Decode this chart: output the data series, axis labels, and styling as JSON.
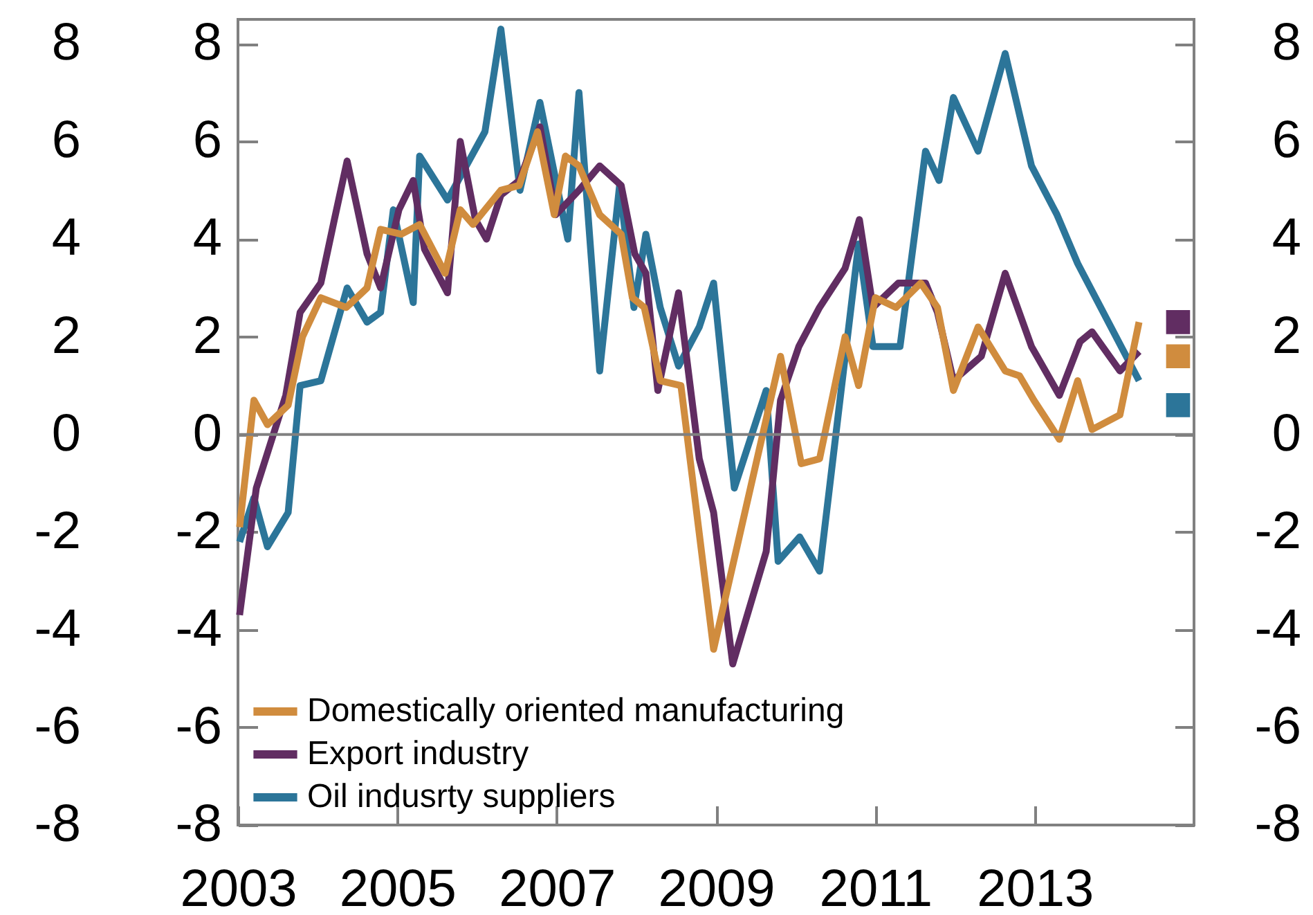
{
  "chart_data": {
    "type": "line",
    "xlim": [
      2003,
      2015
    ],
    "xticks": [
      2003,
      2005,
      2007,
      2009,
      2011,
      2013
    ],
    "ylim": [
      -8,
      8.5
    ],
    "yticks": [
      -8,
      -6,
      -4,
      -2,
      0,
      2,
      4,
      6,
      8
    ],
    "y2lim": [
      -8,
      8.5
    ],
    "y2ticks": [
      -8,
      -6,
      -4,
      -2,
      0,
      2,
      4,
      6,
      8
    ],
    "y3lim": [
      -8,
      8.5
    ],
    "y3ticks": [
      -8,
      -6,
      -4,
      -2,
      0,
      2,
      4,
      6,
      8
    ],
    "legend": "bottom left",
    "line_style": "solid",
    "ref_lines": [
      {
        "axis": "y",
        "value": 0,
        "color": "#808080"
      }
    ],
    "series": [
      {
        "name": "Domestically oriented manufacturing",
        "color": "#d08c3e",
        "x": [
          2003.02,
          2003.2,
          2003.37,
          2003.63,
          2003.81,
          2004.04,
          2004.36,
          2004.62,
          2004.79,
          2005.05,
          2005.28,
          2005.6,
          2005.79,
          2005.95,
          2006.3,
          2006.53,
          2006.76,
          2006.97,
          2007.11,
          2007.28,
          2007.54,
          2007.81,
          2007.95,
          2008.1,
          2008.3,
          2008.56,
          2008.97,
          2009.81,
          2010.07,
          2010.3,
          2010.62,
          2010.79,
          2011.0,
          2011.26,
          2011.57,
          2011.78,
          2011.98,
          2012.29,
          2012.63,
          2012.81,
          2012.99,
          2013.31,
          2013.54,
          2013.72,
          2014.07,
          2014.31
        ],
        "values": [
          -1.9,
          0.7,
          0.2,
          0.6,
          2.0,
          2.8,
          2.6,
          3.0,
          4.2,
          4.1,
          4.3,
          3.3,
          4.6,
          4.3,
          5.0,
          5.1,
          6.2,
          4.5,
          5.7,
          5.5,
          4.5,
          4.1,
          2.8,
          2.6,
          1.1,
          1.0,
          -4.4,
          1.6,
          -0.6,
          -0.5,
          2.0,
          1.0,
          2.8,
          2.6,
          3.1,
          2.6,
          0.9,
          2.2,
          1.3,
          1.2,
          0.7,
          -0.1,
          1.1,
          0.1,
          0.4,
          2.3
        ]
      },
      {
        "name": "Export industry",
        "color": "#612d62",
        "x": [
          2003.02,
          2003.23,
          2003.6,
          2003.78,
          2004.04,
          2004.21,
          2004.37,
          2004.62,
          2004.79,
          2005.02,
          2005.2,
          2005.34,
          2005.63,
          2005.79,
          2005.98,
          2006.12,
          2006.3,
          2006.53,
          2006.79,
          2006.99,
          2007.28,
          2007.54,
          2007.81,
          2007.98,
          2008.12,
          2008.27,
          2008.53,
          2008.79,
          2008.97,
          2009.21,
          2009.63,
          2009.81,
          2010.04,
          2010.3,
          2010.62,
          2010.8,
          2010.97,
          2011.29,
          2011.63,
          2011.78,
          2011.98,
          2012.33,
          2012.63,
          2012.96,
          2013.31,
          2013.57,
          2013.72,
          2014.07,
          2014.31
        ],
        "values": [
          -3.7,
          -1.1,
          0.8,
          2.5,
          3.1,
          4.4,
          5.6,
          3.7,
          3.0,
          4.6,
          5.2,
          3.8,
          2.9,
          6.0,
          4.4,
          4.0,
          4.9,
          5.2,
          6.3,
          4.5,
          5.0,
          5.5,
          5.1,
          3.7,
          3.3,
          0.9,
          2.9,
          -0.5,
          -1.6,
          -4.7,
          -2.4,
          0.7,
          1.8,
          2.6,
          3.4,
          4.4,
          2.6,
          3.1,
          3.1,
          2.5,
          1.1,
          1.6,
          3.3,
          1.8,
          0.8,
          1.9,
          2.1,
          1.3,
          1.7
        ]
      },
      {
        "name": "Oil indusrty suppliers",
        "color": "#2c7599",
        "x": [
          2003.02,
          2003.2,
          2003.37,
          2003.63,
          2003.78,
          2004.04,
          2004.37,
          2004.62,
          2004.79,
          2004.95,
          2005.2,
          2005.28,
          2005.63,
          2006.1,
          2006.3,
          2006.54,
          2006.79,
          2007.14,
          2007.28,
          2007.54,
          2007.79,
          2007.97,
          2008.12,
          2008.3,
          2008.53,
          2008.79,
          2008.97,
          2009.23,
          2009.63,
          2009.78,
          2010.05,
          2010.3,
          2010.79,
          2010.97,
          2011.31,
          2011.63,
          2011.8,
          2011.98,
          2012.29,
          2012.63,
          2012.96,
          2013.28,
          2013.54,
          2014.31
        ],
        "values": [
          -2.2,
          -1.3,
          -2.3,
          -1.6,
          1.0,
          1.1,
          3.0,
          2.3,
          2.5,
          4.6,
          2.7,
          5.7,
          4.8,
          6.2,
          8.3,
          5.0,
          6.8,
          4.0,
          7.0,
          1.3,
          5.1,
          2.6,
          4.1,
          2.6,
          1.4,
          2.2,
          3.1,
          -1.1,
          0.9,
          -2.6,
          -2.1,
          -2.8,
          3.9,
          1.8,
          1.8,
          5.8,
          5.2,
          6.9,
          5.8,
          7.8,
          5.5,
          4.5,
          3.5,
          1.1
        ]
      },
      {
        "type": "scatter",
        "marker": "square",
        "color": "#612d62",
        "x": [
          2014.8
        ],
        "values": [
          2.3
        ]
      },
      {
        "type": "scatter",
        "marker": "square",
        "color": "#d08c3e",
        "x": [
          2014.8
        ],
        "values": [
          1.6
        ]
      },
      {
        "type": "scatter",
        "marker": "square",
        "color": "#2c7599",
        "x": [
          2014.8
        ],
        "values": [
          0.6
        ]
      }
    ]
  }
}
